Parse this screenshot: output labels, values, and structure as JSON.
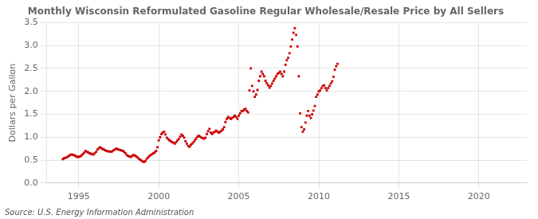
{
  "chart_data": {
    "type": "scatter",
    "title": "Monthly Wisconsin Reformulated Gasoline Regular Wholesale/Resale Price by All Sellers",
    "ylabel": "Dollars per Gallon",
    "annotation": "Source: U.S. Energy Information Administration",
    "color": "#cc0000",
    "marker": "square",
    "grid": true,
    "xlim": [
      1993.0,
      2023.0
    ],
    "ylim": [
      0.0,
      3.5
    ],
    "xticks": [
      1995,
      2000,
      2005,
      2010,
      2015,
      2020
    ],
    "yticks": [
      {
        "value": 0.0,
        "label": "0.0"
      },
      0.5,
      {
        "value": 1.0,
        "label": "1.0"
      },
      1.5,
      {
        "value": 2.0,
        "label": "2.0"
      },
      2.5,
      {
        "value": 3.0,
        "label": "3.0"
      },
      3.5
    ],
    "x": [
      1994.0,
      1994.083,
      1994.167,
      1994.25,
      1994.333,
      1994.417,
      1994.5,
      1994.583,
      1994.667,
      1994.75,
      1994.833,
      1994.917,
      1995.0,
      1995.083,
      1995.167,
      1995.25,
      1995.333,
      1995.417,
      1995.5,
      1995.583,
      1995.667,
      1995.75,
      1995.833,
      1995.917,
      1996.0,
      1996.083,
      1996.167,
      1996.25,
      1996.333,
      1996.417,
      1996.5,
      1996.583,
      1996.667,
      1996.75,
      1996.833,
      1996.917,
      1997.0,
      1997.083,
      1997.167,
      1997.25,
      1997.333,
      1997.417,
      1997.5,
      1997.583,
      1997.667,
      1997.75,
      1997.833,
      1997.917,
      1998.0,
      1998.083,
      1998.167,
      1998.25,
      1998.333,
      1998.417,
      1998.5,
      1998.583,
      1998.667,
      1998.75,
      1998.833,
      1998.917,
      1999.0,
      1999.083,
      1999.167,
      1999.25,
      1999.333,
      1999.417,
      1999.5,
      1999.583,
      1999.667,
      1999.75,
      1999.833,
      1999.917,
      2000.0,
      2000.083,
      2000.167,
      2000.25,
      2000.333,
      2000.417,
      2000.5,
      2000.583,
      2000.667,
      2000.75,
      2000.833,
      2000.917,
      2001.0,
      2001.083,
      2001.167,
      2001.25,
      2001.333,
      2001.417,
      2001.5,
      2001.583,
      2001.667,
      2001.75,
      2001.833,
      2001.917,
      2002.0,
      2002.083,
      2002.167,
      2002.25,
      2002.333,
      2002.417,
      2002.5,
      2002.583,
      2002.667,
      2002.75,
      2002.833,
      2002.917,
      2003.0,
      2003.083,
      2003.167,
      2003.25,
      2003.333,
      2003.417,
      2003.5,
      2003.583,
      2003.667,
      2003.75,
      2003.833,
      2003.917,
      2004.0,
      2004.083,
      2004.167,
      2004.25,
      2004.333,
      2004.417,
      2004.5,
      2004.583,
      2004.667,
      2004.75,
      2004.833,
      2004.917,
      2005.0,
      2005.083,
      2005.167,
      2005.25,
      2005.333,
      2005.417,
      2005.5,
      2005.583,
      2005.667,
      2005.75,
      2005.833,
      2005.917,
      2006.0,
      2006.083,
      2006.167,
      2006.25,
      2006.333,
      2006.417,
      2006.5,
      2006.583,
      2006.667,
      2006.75,
      2006.833,
      2006.917,
      2007.0,
      2007.083,
      2007.167,
      2007.25,
      2007.333,
      2007.417,
      2007.5,
      2007.583,
      2007.667,
      2007.75,
      2007.833,
      2007.917,
      2008.0,
      2008.083,
      2008.167,
      2008.25,
      2008.333,
      2008.417,
      2008.5,
      2008.583,
      2008.667,
      2008.75,
      2008.833,
      2008.917,
      2009.0,
      2009.083,
      2009.167,
      2009.25,
      2009.333,
      2009.417,
      2009.5,
      2009.583,
      2009.667,
      2009.75,
      2009.833,
      2009.917,
      2010.0,
      2010.083,
      2010.167,
      2010.25,
      2010.333,
      2010.417,
      2010.5,
      2010.583,
      2010.667,
      2010.75,
      2010.833,
      2010.917,
      2011.0,
      2011.083,
      2011.167
    ],
    "values": [
      0.52,
      0.54,
      0.55,
      0.56,
      0.58,
      0.6,
      0.62,
      0.62,
      0.61,
      0.6,
      0.58,
      0.57,
      0.57,
      0.58,
      0.6,
      0.63,
      0.66,
      0.7,
      0.68,
      0.67,
      0.65,
      0.64,
      0.63,
      0.62,
      0.65,
      0.68,
      0.73,
      0.76,
      0.78,
      0.76,
      0.74,
      0.73,
      0.71,
      0.7,
      0.69,
      0.69,
      0.68,
      0.69,
      0.71,
      0.73,
      0.75,
      0.74,
      0.73,
      0.72,
      0.71,
      0.7,
      0.68,
      0.65,
      0.61,
      0.59,
      0.58,
      0.57,
      0.59,
      0.61,
      0.6,
      0.58,
      0.56,
      0.53,
      0.51,
      0.49,
      0.47,
      0.46,
      0.48,
      0.53,
      0.56,
      0.59,
      0.61,
      0.63,
      0.65,
      0.67,
      0.7,
      0.78,
      0.93,
      1.0,
      1.07,
      1.1,
      1.12,
      1.06,
      0.99,
      0.96,
      0.93,
      0.91,
      0.89,
      0.88,
      0.86,
      0.89,
      0.93,
      0.96,
      1.01,
      1.06,
      1.03,
      0.99,
      0.91,
      0.86,
      0.81,
      0.79,
      0.83,
      0.86,
      0.89,
      0.93,
      0.97,
      1.01,
      1.03,
      1.01,
      0.99,
      0.98,
      0.97,
      0.99,
      1.07,
      1.13,
      1.18,
      1.1,
      1.07,
      1.1,
      1.12,
      1.14,
      1.12,
      1.1,
      1.12,
      1.14,
      1.17,
      1.22,
      1.33,
      1.4,
      1.44,
      1.42,
      1.4,
      1.42,
      1.44,
      1.47,
      1.44,
      1.4,
      1.47,
      1.52,
      1.57,
      1.57,
      1.6,
      1.62,
      1.57,
      1.54,
      2.02,
      2.5,
      2.12,
      2.0,
      1.88,
      1.93,
      2.03,
      2.23,
      2.33,
      2.43,
      2.38,
      2.33,
      2.23,
      2.18,
      2.13,
      2.08,
      2.12,
      2.17,
      2.23,
      2.28,
      2.33,
      2.38,
      2.4,
      2.43,
      2.38,
      2.33,
      2.43,
      2.58,
      2.68,
      2.73,
      2.83,
      2.98,
      3.13,
      3.28,
      3.38,
      3.23,
      2.98,
      2.33,
      1.52,
      1.22,
      1.12,
      1.17,
      1.32,
      1.47,
      1.57,
      1.47,
      1.42,
      1.5,
      1.58,
      1.68,
      1.88,
      1.93,
      2.0,
      2.02,
      2.07,
      2.12,
      2.13,
      2.07,
      2.02,
      2.07,
      2.12,
      2.17,
      2.22,
      2.32,
      2.47,
      2.55,
      2.6
    ]
  }
}
